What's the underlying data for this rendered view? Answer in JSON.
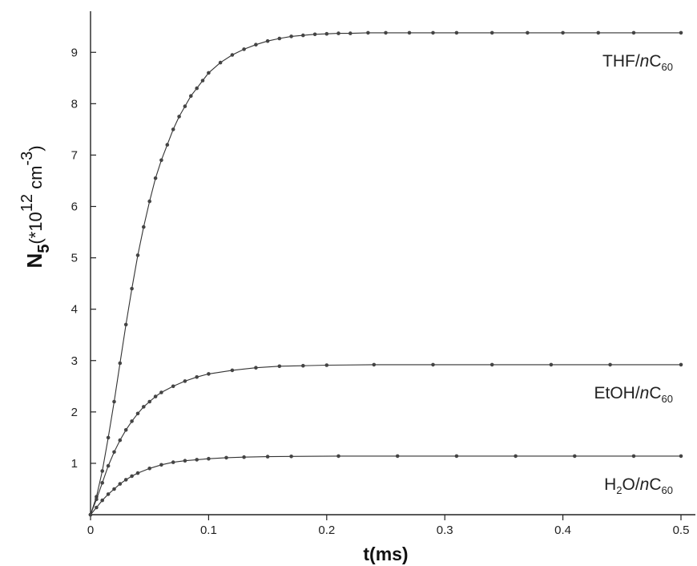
{
  "chart_data": {
    "type": "line",
    "xlabel": "t(ms)",
    "ylabel": {
      "base": "N",
      "base_sub": "5",
      "prefix": "(*10",
      "exp": "12",
      "unit": " cm",
      "unit_exp": "-3",
      "suffix": ")"
    },
    "xlim": [
      0,
      0.5
    ],
    "ylim": [
      0,
      9.8
    ],
    "xticks": [
      "0",
      "0.1",
      "0.2",
      "0.3",
      "0.4",
      "0.5"
    ],
    "xtick_values": [
      0,
      0.1,
      0.2,
      0.3,
      0.4,
      0.5
    ],
    "yticks": [
      "1",
      "2",
      "3",
      "4",
      "5",
      "6",
      "7",
      "8",
      "9"
    ],
    "ytick_values": [
      1,
      2,
      3,
      4,
      5,
      6,
      7,
      8,
      9
    ],
    "grid": false,
    "series": [
      {
        "label_main": "THF/",
        "label_italic": "n",
        "label_c": "C",
        "label_sub": "60",
        "asymptote": 9.38,
        "x": [
          0,
          0.005,
          0.01,
          0.015,
          0.02,
          0.025,
          0.03,
          0.035,
          0.04,
          0.045,
          0.05,
          0.055,
          0.06,
          0.065,
          0.07,
          0.075,
          0.08,
          0.085,
          0.09,
          0.095,
          0.1,
          0.11,
          0.12,
          0.13,
          0.14,
          0.15,
          0.16,
          0.17,
          0.18,
          0.19,
          0.2,
          0.21,
          0.22,
          0.235,
          0.25,
          0.27,
          0.29,
          0.31,
          0.34,
          0.37,
          0.4,
          0.43,
          0.46,
          0.5
        ],
        "y": [
          0,
          0.35,
          0.85,
          1.5,
          2.2,
          2.95,
          3.7,
          4.4,
          5.05,
          5.6,
          6.1,
          6.55,
          6.9,
          7.2,
          7.5,
          7.75,
          7.95,
          8.15,
          8.3,
          8.45,
          8.6,
          8.8,
          8.95,
          9.06,
          9.15,
          9.22,
          9.27,
          9.31,
          9.33,
          9.35,
          9.36,
          9.37,
          9.37,
          9.38,
          9.38,
          9.38,
          9.38,
          9.38,
          9.38,
          9.38,
          9.38,
          9.38,
          9.38,
          9.38
        ]
      },
      {
        "label_main": "EtOH/",
        "label_italic": "n",
        "label_c": "C",
        "label_sub": "60",
        "asymptote": 2.92,
        "x": [
          0,
          0.005,
          0.01,
          0.015,
          0.02,
          0.025,
          0.03,
          0.035,
          0.04,
          0.045,
          0.05,
          0.055,
          0.06,
          0.07,
          0.08,
          0.09,
          0.1,
          0.12,
          0.14,
          0.16,
          0.18,
          0.2,
          0.24,
          0.29,
          0.34,
          0.39,
          0.44,
          0.5
        ],
        "y": [
          0,
          0.3,
          0.62,
          0.95,
          1.22,
          1.45,
          1.65,
          1.82,
          1.97,
          2.1,
          2.2,
          2.3,
          2.38,
          2.5,
          2.6,
          2.68,
          2.74,
          2.81,
          2.86,
          2.89,
          2.9,
          2.91,
          2.92,
          2.92,
          2.92,
          2.92,
          2.92,
          2.92
        ]
      },
      {
        "label_main": "H",
        "label_h_sub": "2",
        "label_o": "O/",
        "label_italic": "n",
        "label_c": "C",
        "label_sub": "60",
        "asymptote": 1.14,
        "x": [
          0,
          0.005,
          0.01,
          0.015,
          0.02,
          0.025,
          0.03,
          0.035,
          0.04,
          0.05,
          0.06,
          0.07,
          0.08,
          0.09,
          0.1,
          0.115,
          0.13,
          0.15,
          0.17,
          0.21,
          0.26,
          0.31,
          0.36,
          0.41,
          0.46,
          0.5
        ],
        "y": [
          0,
          0.14,
          0.28,
          0.4,
          0.5,
          0.6,
          0.68,
          0.75,
          0.81,
          0.9,
          0.97,
          1.02,
          1.05,
          1.07,
          1.09,
          1.11,
          1.12,
          1.13,
          1.135,
          1.14,
          1.14,
          1.14,
          1.14,
          1.14,
          1.14,
          1.14
        ]
      }
    ]
  }
}
